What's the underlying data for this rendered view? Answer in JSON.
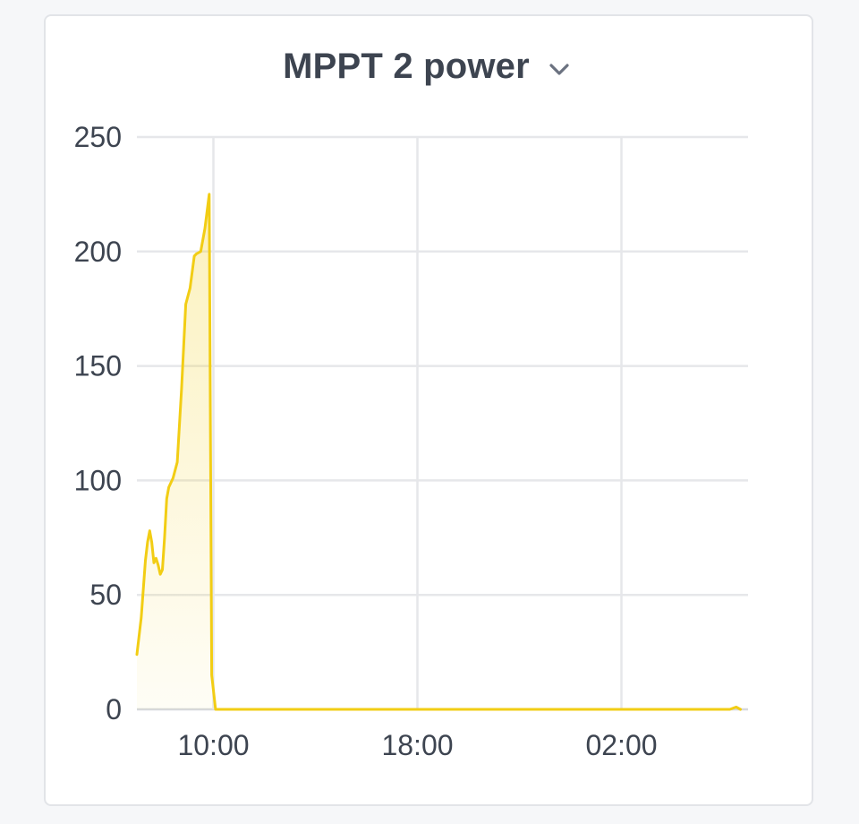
{
  "card": {
    "title": "MPPT 2 power",
    "dropdown_icon": "chevron-down-icon"
  },
  "chart_data": {
    "type": "area",
    "title": "MPPT 2 power",
    "xlabel": "",
    "ylabel": "",
    "ylim": [
      0,
      250
    ],
    "xlim": [
      "07:00",
      "06:40"
    ],
    "grid": true,
    "legend": "none",
    "color": "#f2cd14",
    "y_ticks": [
      {
        "value": 0,
        "label": "0"
      },
      {
        "value": 50,
        "label": "50"
      },
      {
        "value": 100,
        "label": "100"
      },
      {
        "value": 150,
        "label": "150"
      },
      {
        "value": 200,
        "label": "200"
      },
      {
        "value": 250,
        "label": "250"
      }
    ],
    "x_ticks": [
      {
        "time": "10:00",
        "label": "10:00"
      },
      {
        "time": "18:00",
        "label": "18:00"
      },
      {
        "time": "02:00",
        "label": "02:00"
      }
    ],
    "series": [
      {
        "values": [
          {
            "t": "07:00",
            "v": 24
          },
          {
            "t": "07:10",
            "v": 40
          },
          {
            "t": "07:20",
            "v": 65
          },
          {
            "t": "07:25",
            "v": 73
          },
          {
            "t": "07:30",
            "v": 78
          },
          {
            "t": "07:35",
            "v": 73
          },
          {
            "t": "07:40",
            "v": 64
          },
          {
            "t": "07:45",
            "v": 66
          },
          {
            "t": "07:50",
            "v": 63
          },
          {
            "t": "07:55",
            "v": 59
          },
          {
            "t": "08:00",
            "v": 61
          },
          {
            "t": "08:05",
            "v": 75
          },
          {
            "t": "08:10",
            "v": 92
          },
          {
            "t": "08:15",
            "v": 97
          },
          {
            "t": "08:25",
            "v": 101
          },
          {
            "t": "08:35",
            "v": 108
          },
          {
            "t": "08:45",
            "v": 140
          },
          {
            "t": "08:55",
            "v": 177
          },
          {
            "t": "09:05",
            "v": 184
          },
          {
            "t": "09:15",
            "v": 198
          },
          {
            "t": "09:20",
            "v": 199
          },
          {
            "t": "09:30",
            "v": 200
          },
          {
            "t": "09:40",
            "v": 210
          },
          {
            "t": "09:50",
            "v": 225
          },
          {
            "t": "09:56",
            "v": 15
          },
          {
            "t": "10:05",
            "v": 0
          },
          {
            "t": "13:00",
            "v": 0
          },
          {
            "t": "18:00",
            "v": 0
          },
          {
            "t": "23:00",
            "v": 0
          },
          {
            "t": "02:00",
            "v": 0
          },
          {
            "t": "06:15",
            "v": 0
          },
          {
            "t": "06:30",
            "v": 1
          },
          {
            "t": "06:40",
            "v": 0
          }
        ]
      }
    ]
  }
}
